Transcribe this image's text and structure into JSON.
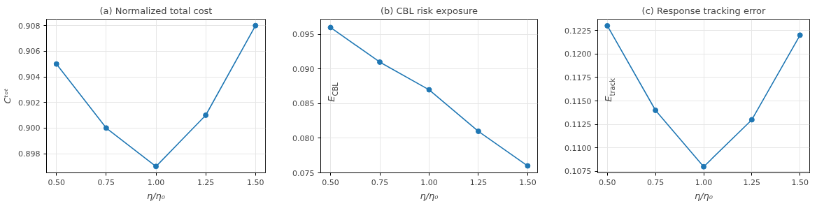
{
  "chart_data": [
    {
      "type": "line",
      "title": "(a) Normalized total cost",
      "xlabel": "η/η₀",
      "ylabel": "Cᵗᵒᵗ",
      "x": [
        0.5,
        0.75,
        1.0,
        1.25,
        1.5
      ],
      "series": [
        {
          "color": "#1f77b4",
          "values": [
            0.905,
            0.9,
            0.897,
            0.901,
            0.908
          ]
        }
      ],
      "xlim": [
        0.45,
        1.55
      ],
      "xticks": [
        {
          "value": 0.5,
          "label": "0.50"
        },
        {
          "value": 0.75,
          "label": "0.75"
        },
        {
          "value": 1.0,
          "label": "1.00"
        },
        {
          "value": 1.25,
          "label": "1.25"
        },
        {
          "value": 1.5,
          "label": "1.50"
        }
      ],
      "ylim": [
        0.8965,
        0.9085
      ],
      "yticks": [
        {
          "value": 0.898,
          "label": "0.898"
        },
        {
          "value": 0.9,
          "label": "0.900"
        },
        {
          "value": 0.902,
          "label": "0.902"
        },
        {
          "value": 0.904,
          "label": "0.904"
        },
        {
          "value": 0.906,
          "label": "0.906"
        },
        {
          "value": 0.908,
          "label": "0.908"
        }
      ],
      "grid": true,
      "marker": "circle",
      "line_style": "solid"
    },
    {
      "type": "line",
      "title": "(b) CBL risk exposure",
      "xlabel": "η/η₀",
      "ylabel": "E$_{CBL}$",
      "x": [
        0.5,
        0.75,
        1.0,
        1.25,
        1.5
      ],
      "series": [
        {
          "color": "#1f77b4",
          "values": [
            0.096,
            0.091,
            0.087,
            0.081,
            0.076
          ]
        }
      ],
      "xlim": [
        0.45,
        1.55
      ],
      "xticks": [
        {
          "value": 0.5,
          "label": "0.50"
        },
        {
          "value": 0.75,
          "label": "0.75"
        },
        {
          "value": 1.0,
          "label": "1.00"
        },
        {
          "value": 1.25,
          "label": "1.25"
        },
        {
          "value": 1.5,
          "label": "1.50"
        }
      ],
      "ylim": [
        0.075,
        0.0972
      ],
      "yticks": [
        {
          "value": 0.075,
          "label": "0.075"
        },
        {
          "value": 0.08,
          "label": "0.080"
        },
        {
          "value": 0.085,
          "label": "0.085"
        },
        {
          "value": 0.09,
          "label": "0.090"
        },
        {
          "value": 0.095,
          "label": "0.095"
        }
      ],
      "grid": true,
      "marker": "circle",
      "line_style": "solid"
    },
    {
      "type": "line",
      "title": "(c) Response tracking error",
      "xlabel": "η/η₀",
      "ylabel": "E$_{track}$",
      "x": [
        0.5,
        0.75,
        1.0,
        1.25,
        1.5
      ],
      "series": [
        {
          "color": "#1f77b4",
          "values": [
            0.123,
            0.114,
            0.108,
            0.113,
            0.122
          ]
        }
      ],
      "xlim": [
        0.45,
        1.55
      ],
      "xticks": [
        {
          "value": 0.5,
          "label": "0.50"
        },
        {
          "value": 0.75,
          "label": "0.75"
        },
        {
          "value": 1.0,
          "label": "1.00"
        },
        {
          "value": 1.25,
          "label": "1.25"
        },
        {
          "value": 1.5,
          "label": "1.50"
        }
      ],
      "ylim": [
        0.10735,
        0.1237
      ],
      "yticks": [
        {
          "value": 0.1075,
          "label": "0.1075"
        },
        {
          "value": 0.11,
          "label": "0.1100"
        },
        {
          "value": 0.1125,
          "label": "0.1125"
        },
        {
          "value": 0.115,
          "label": "0.1150"
        },
        {
          "value": 0.1175,
          "label": "0.1175"
        },
        {
          "value": 0.12,
          "label": "0.1200"
        },
        {
          "value": 0.1225,
          "label": "0.1225"
        }
      ],
      "grid": true,
      "marker": "circle",
      "line_style": "solid"
    }
  ]
}
